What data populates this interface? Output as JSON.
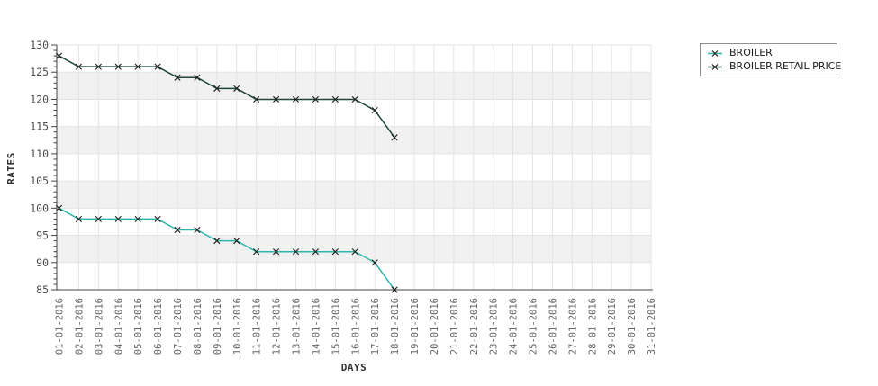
{
  "chart_data": {
    "type": "line",
    "title": "",
    "xlabel": "DAYS",
    "ylabel": "RATES",
    "x_categories": [
      "01-01-2016",
      "02-01-2016",
      "03-01-2016",
      "04-01-2016",
      "05-01-2016",
      "06-01-2016",
      "07-01-2016",
      "08-01-2016",
      "09-01-2016",
      "10-01-2016",
      "11-01-2016",
      "12-01-2016",
      "13-01-2016",
      "14-01-2016",
      "15-01-2016",
      "16-01-2016",
      "17-01-2016",
      "18-01-2016",
      "19-01-2016",
      "20-01-2016",
      "21-01-2016",
      "22-01-2016",
      "23-01-2016",
      "24-01-2016",
      "25-01-2016",
      "26-01-2016",
      "27-01-2016",
      "28-01-2016",
      "29-01-2016",
      "30-01-2016",
      "31-01-2016"
    ],
    "y_ticks": [
      85,
      90,
      95,
      100,
      105,
      110,
      115,
      120,
      125,
      130
    ],
    "ylim": [
      85,
      130
    ],
    "y_minor_step": 1,
    "grid": true,
    "marker_symbol": "x",
    "series": [
      {
        "name": "BROILER",
        "color": "#2eb6ad",
        "values": [
          100,
          98,
          98,
          98,
          98,
          98,
          96,
          96,
          94,
          94,
          92,
          92,
          92,
          92,
          92,
          92,
          90,
          85
        ]
      },
      {
        "name": "BROILER RETAIL PRICE",
        "color": "#1c4639",
        "values": [
          128,
          126,
          126,
          126,
          126,
          126,
          124,
          124,
          122,
          122,
          120,
          120,
          120,
          120,
          120,
          120,
          118,
          113
        ]
      }
    ],
    "legend": {
      "position": "top-right",
      "items": [
        "BROILER",
        "BROILER RETAIL PRICE"
      ]
    }
  },
  "colors": {
    "background": "#ffffff",
    "band": "#f1f1f1",
    "grid": "#e4e4e4",
    "axis": "#444444",
    "marker": "#1a1a1a",
    "y_tick_text": "#4a4a4a",
    "x_tick_text": "#666666",
    "axis_title": "#333333",
    "legend_border": "#8f8f8f",
    "legend_text": "#1a1a1a"
  }
}
